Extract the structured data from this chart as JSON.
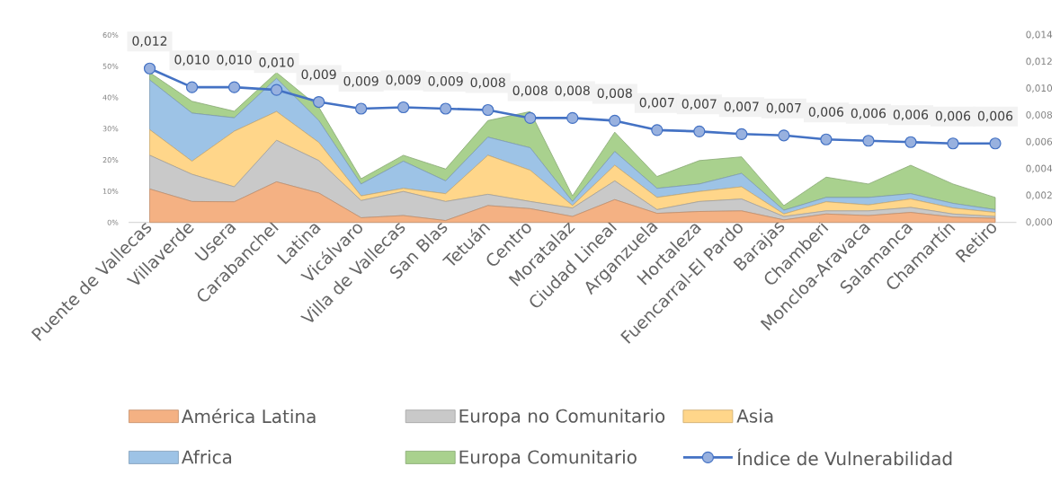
{
  "chart_data": {
    "type": "area",
    "stacked": true,
    "categories": [
      "Puente de Vallecas",
      "Villaverde",
      "Usera",
      "Carabanchel",
      "Latina",
      "Vicálvaro",
      "Villa de Vallecas",
      "San Blas",
      "Tetuán",
      "Centro",
      "Moratalaz",
      "Ciudad Lineal",
      "Arganzuela",
      "Hortaleza",
      "Fuencarral-El Pardo",
      "Barajas",
      "Chamberí",
      "Moncloa-Aravaca",
      "Salamanca",
      "Chamartín",
      "Retiro"
    ],
    "series": [
      {
        "name": "América Latina",
        "color": "#f4b183",
        "values": [
          10.7,
          6.7,
          6.6,
          13.0,
          9.4,
          1.5,
          2.2,
          0.6,
          5.4,
          4.4,
          1.9,
          7.3,
          2.9,
          3.5,
          3.7,
          0.8,
          2.7,
          2.2,
          3.2,
          1.7,
          1.3
        ]
      },
      {
        "name": "Europa no Comunitario",
        "color": "#c9c9c9",
        "values": [
          10.8,
          8.7,
          4.8,
          13.3,
          10.4,
          5.5,
          7.7,
          6.1,
          3.6,
          2.3,
          2.7,
          6.0,
          1.2,
          3.2,
          3.8,
          1.1,
          1.0,
          1.5,
          1.6,
          1.0,
          0.6
        ]
      },
      {
        "name": "Asia",
        "color": "#ffd68a",
        "values": [
          8.2,
          4.2,
          17.8,
          9.2,
          5.8,
          1.5,
          1.0,
          2.5,
          12.5,
          10.0,
          0.8,
          5.0,
          3.9,
          3.2,
          3.9,
          0.8,
          2.9,
          1.9,
          2.7,
          1.9,
          1.3
        ]
      },
      {
        "name": "Africa",
        "color": "#9dc3e6",
        "values": [
          15.9,
          15.4,
          4.3,
          10.6,
          7.0,
          3.8,
          8.7,
          4.1,
          5.8,
          7.2,
          1.3,
          4.4,
          2.9,
          2.4,
          4.3,
          1.2,
          1.4,
          2.4,
          1.7,
          1.5,
          0.9
        ]
      },
      {
        "name": "Europa Comunitario",
        "color": "#a9d18e",
        "values": [
          2.4,
          3.8,
          2.1,
          1.9,
          4.3,
          1.7,
          1.9,
          3.8,
          5.3,
          11.6,
          1.8,
          6.2,
          3.8,
          7.5,
          5.3,
          1.5,
          6.5,
          4.3,
          9.1,
          6.2,
          3.9
        ]
      },
      {
        "name": "Índice de Vulnerabilidad",
        "type": "line",
        "axis": "y2",
        "color": "#4472c4",
        "marker": "circle",
        "values": [
          0.0115,
          0.0101,
          0.0101,
          0.0099,
          0.009,
          0.0085,
          0.0086,
          0.0085,
          0.0084,
          0.0078,
          0.0078,
          0.0076,
          0.0069,
          0.0068,
          0.0066,
          0.0065,
          0.0062,
          0.0061,
          0.006,
          0.0059,
          0.0059
        ],
        "value_labels": [
          "0,012",
          "0,010",
          "0,010",
          "0,010",
          "0,009",
          "0,009",
          "0,009",
          "0,009",
          "0,008",
          "0,008",
          "0,008",
          "0,008",
          "0,007",
          "0,007",
          "0,007",
          "0,007",
          "0,006",
          "0,006",
          "0,006",
          "0,006",
          "0,006"
        ]
      }
    ],
    "ylim": [
      0,
      60
    ],
    "yticks": [
      {
        "value": 0,
        "label": "0%"
      },
      {
        "value": 10,
        "label": "10%"
      },
      {
        "value": 20,
        "label": "20%"
      },
      {
        "value": 30,
        "label": "30%"
      },
      {
        "value": 40,
        "label": "40%"
      },
      {
        "value": 50,
        "label": "50%"
      },
      {
        "value": 60,
        "label": "60%"
      }
    ],
    "y2lim": [
      0,
      0.014
    ],
    "y2ticks": [
      {
        "value": 0,
        "label": "0,000"
      },
      {
        "value": 0.002,
        "label": "0,002"
      },
      {
        "value": 0.004,
        "label": "0,004"
      },
      {
        "value": 0.006,
        "label": "0,006"
      },
      {
        "value": 0.008,
        "label": "0,008"
      },
      {
        "value": 0.01,
        "label": "0,010"
      },
      {
        "value": 0.012,
        "label": "0,012"
      },
      {
        "value": 0.014,
        "label": "0,014"
      }
    ],
    "legend": "bottom"
  }
}
